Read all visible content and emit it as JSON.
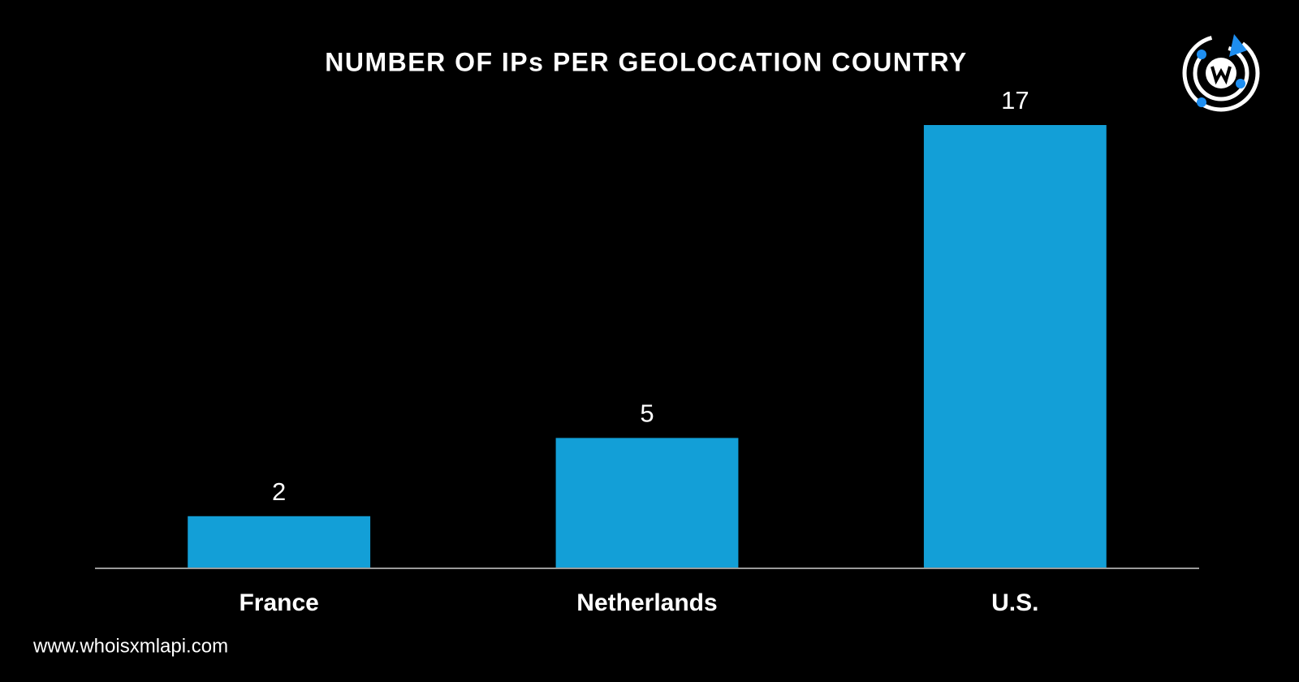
{
  "chart_data": {
    "type": "bar",
    "title": "NUMBER OF IPs PER GEOLOCATION COUNTRY",
    "categories": [
      "France",
      "Netherlands",
      "U.S."
    ],
    "values": [
      2,
      5,
      17
    ],
    "color": "#139fd7",
    "ylim": [
      0,
      17
    ],
    "value_labels_shown": true
  },
  "footer": "www.whoisxmlapi.com"
}
